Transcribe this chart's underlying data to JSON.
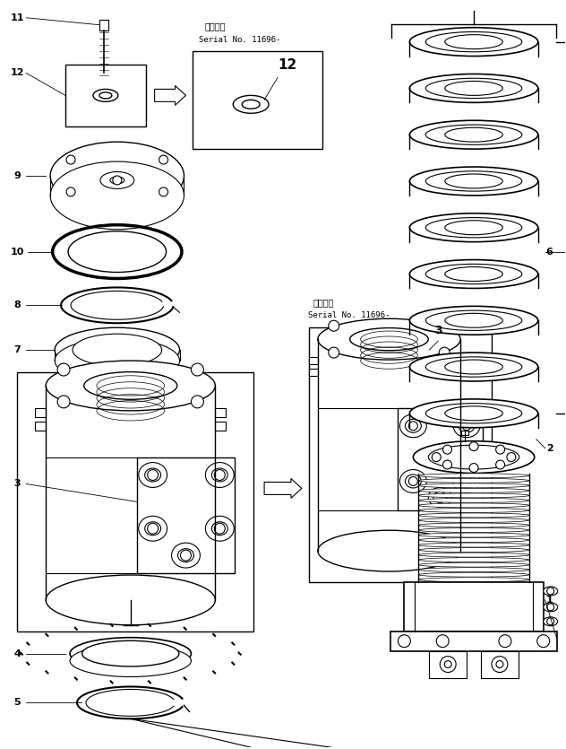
{
  "bg_color": "#ffffff",
  "line_color": "#000000",
  "fig_width": 6.32,
  "fig_height": 8.35,
  "dpi": 100,
  "text_label1": "適用号機",
  "text_label2": "Serial No. 11696-",
  "text_label3": "適用号機",
  "text_label4": "Serial No. 11696-"
}
